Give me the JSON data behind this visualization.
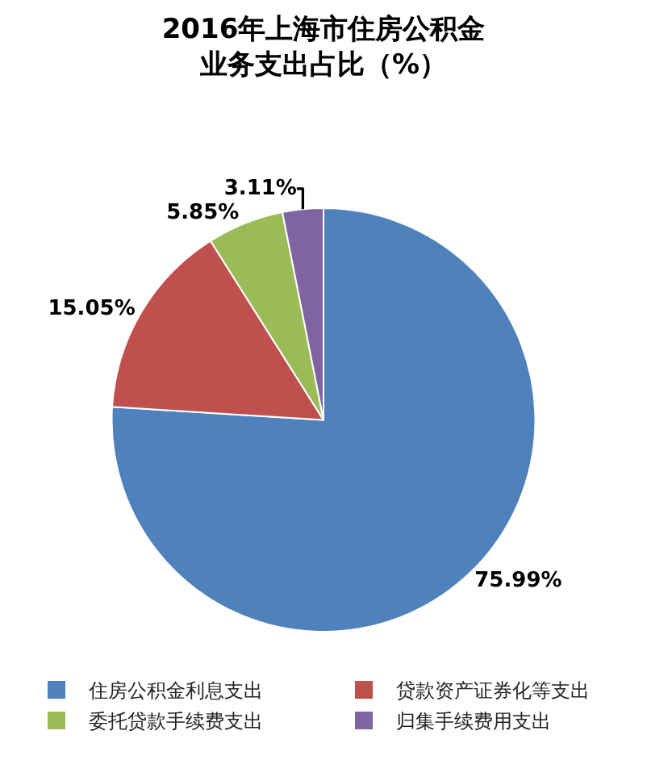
{
  "chart_data": {
    "type": "pie",
    "title": "2016年上海市住房公积金业务支出占比（%）",
    "categories": [
      "住房公积金利息支出",
      "贷款资产证券化等支出",
      "委托贷款手续费支出",
      "归集手续费用支出"
    ],
    "values": [
      75.99,
      15.05,
      5.85,
      3.11
    ],
    "colors": [
      "#4f81bd",
      "#c0504d",
      "#9bbb59",
      "#8064a2"
    ],
    "value_labels": [
      "75.99%",
      "15.05%",
      "5.85%",
      "3.11%"
    ],
    "legend": "bottom"
  }
}
